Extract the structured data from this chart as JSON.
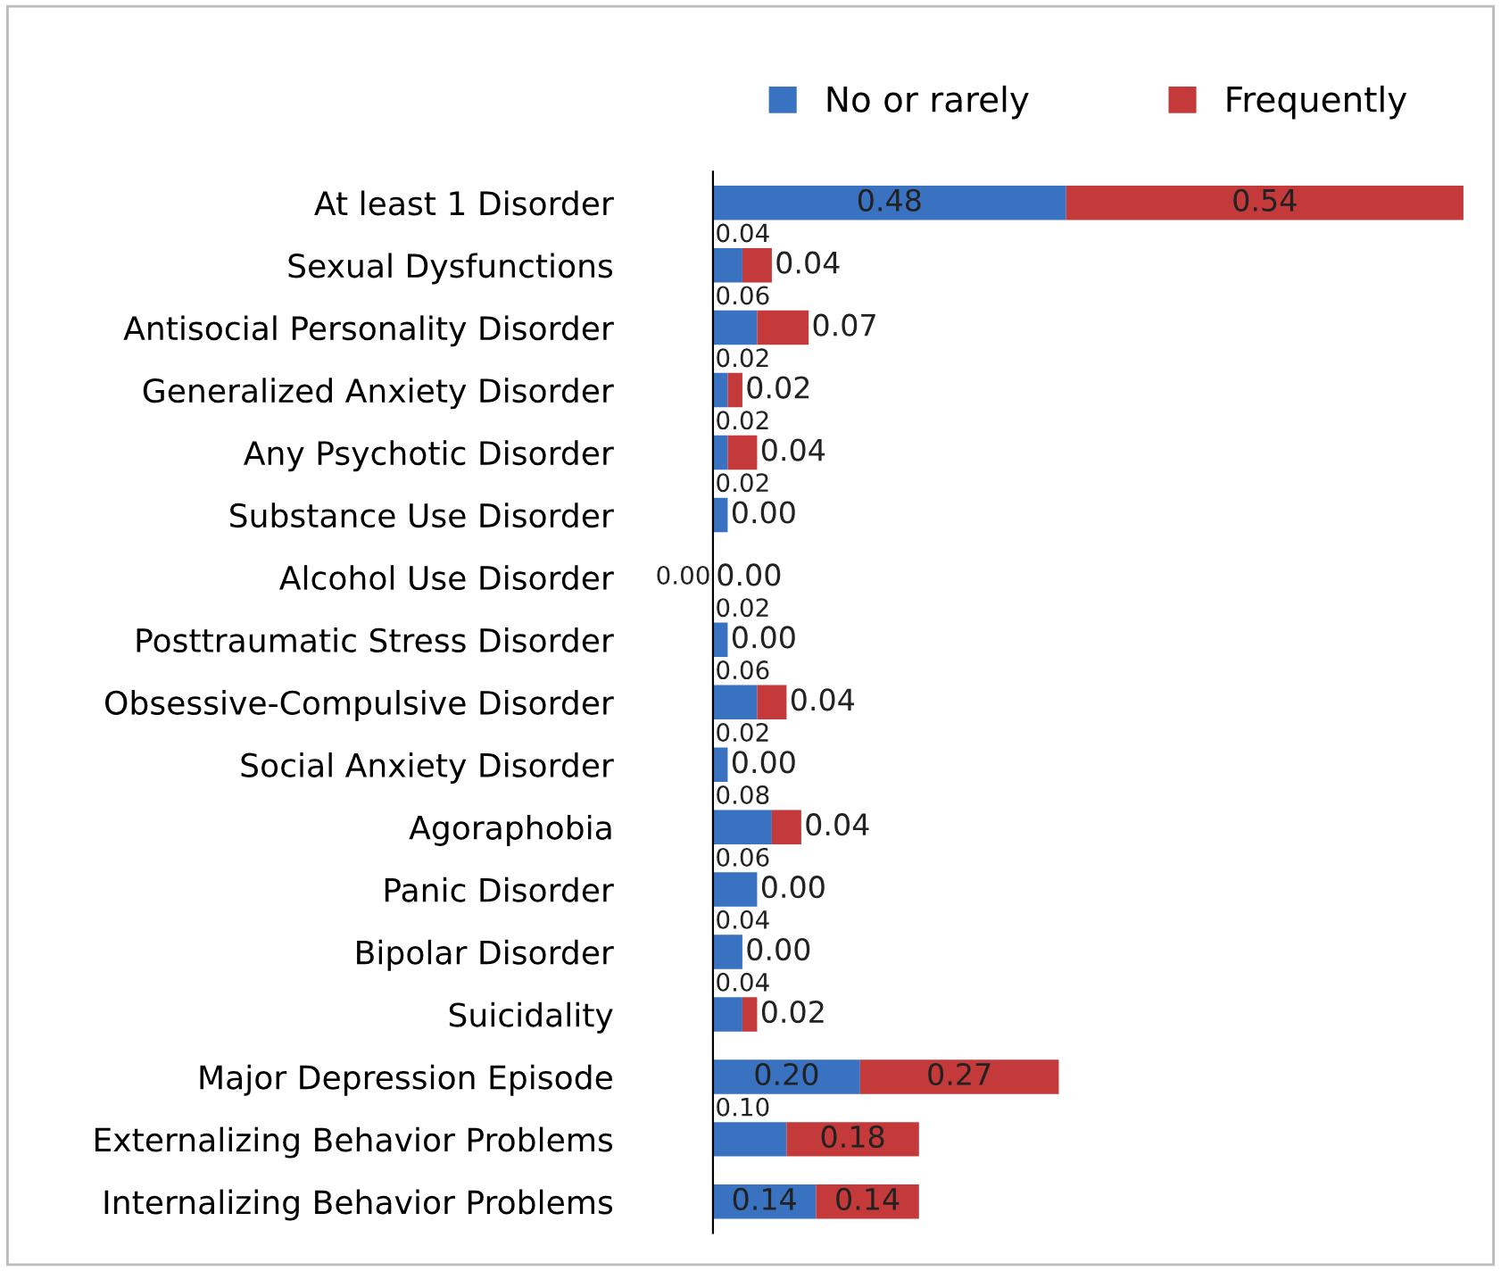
{
  "chart_data": {
    "type": "bar",
    "orientation": "horizontal",
    "stacked": true,
    "legend": "top",
    "grid": false,
    "categories": [
      "At least 1 Disorder",
      "Sexual Dysfunctions",
      "Antisocial Personality Disorder",
      "Generalized Anxiety Disorder",
      "Any Psychotic Disorder",
      "Substance Use Disorder",
      "Alcohol Use Disorder",
      "Posttraumatic Stress Disorder",
      "Obsessive-Compulsive Disorder",
      "Social Anxiety Disorder",
      "Agoraphobia",
      "Panic Disorder",
      "Bipolar Disorder",
      "Suicidality",
      "Major Depression Episode",
      "Externalizing Behavior Problems",
      "Internalizing Behavior Problems"
    ],
    "series": [
      {
        "name": "No or rarely",
        "color": "#3a72c2",
        "values": [
          0.48,
          0.04,
          0.06,
          0.02,
          0.02,
          0.02,
          0.0,
          0.02,
          0.06,
          0.02,
          0.08,
          0.06,
          0.04,
          0.04,
          0.2,
          0.1,
          0.14
        ],
        "value_labels": [
          "0.48",
          "0.04",
          "0.06",
          "0.02",
          "0.02",
          "0.02",
          "0.00",
          "0.02",
          "0.06",
          "0.02",
          "0.08",
          "0.06",
          "0.04",
          "0.04",
          "0.20",
          "0.10",
          "0.14"
        ]
      },
      {
        "name": "Frequently",
        "color": "#c43a3a",
        "values": [
          0.54,
          0.04,
          0.07,
          0.02,
          0.04,
          0.0,
          0.0,
          0.0,
          0.04,
          0.0,
          0.04,
          0.0,
          0.0,
          0.02,
          0.27,
          0.18,
          0.14
        ],
        "value_labels": [
          "0.54",
          "0.04",
          "0.07",
          "0.02",
          "0.04",
          "0.00",
          "0.00",
          "0.00",
          "0.04",
          "0.00",
          "0.04",
          "0.00",
          "0.00",
          "0.02",
          "0.27",
          "0.18",
          "0.14"
        ]
      }
    ]
  }
}
